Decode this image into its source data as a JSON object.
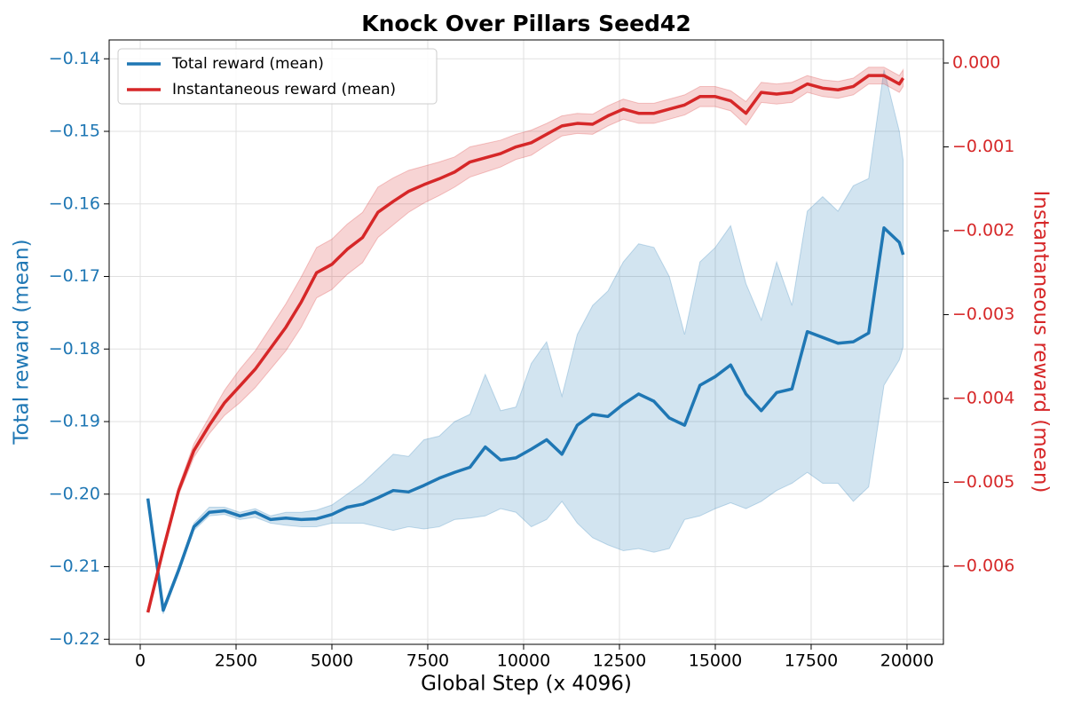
{
  "chart_data": {
    "type": "line",
    "title": "Knock Over Pillars Seed42",
    "x_label": "Global Step (x 4096)",
    "y_label": "Total reward (mean)",
    "y2_label": "Instantaneous reward (mean)",
    "grid": true,
    "legend": "upper left",
    "xlim": [
      -810,
      20950
    ],
    "xticks": [
      0,
      2500,
      5000,
      7500,
      10000,
      12500,
      15000,
      17500,
      20000
    ],
    "ylim": [
      -0.2207,
      -0.1374
    ],
    "yticks": [
      {
        "value": -0.22,
        "label": "−0.22"
      },
      {
        "value": -0.21,
        "label": "−0.21"
      },
      {
        "value": -0.2,
        "label": "−0.20"
      },
      {
        "value": -0.19,
        "label": "−0.19"
      },
      {
        "value": -0.18,
        "label": "−0.18"
      },
      {
        "value": -0.17,
        "label": "−0.17"
      },
      {
        "value": -0.16,
        "label": "−0.16"
      },
      {
        "value": -0.15,
        "label": "−0.15"
      },
      {
        "value": -0.14,
        "label": "−0.14"
      }
    ],
    "y2lim": [
      -0.00693,
      0.000275
    ],
    "y2ticks": [
      {
        "value": -0.006,
        "label": "−0.006"
      },
      {
        "value": -0.005,
        "label": "−0.005"
      },
      {
        "value": -0.004,
        "label": "−0.004"
      },
      {
        "value": -0.003,
        "label": "−0.003"
      },
      {
        "value": -0.002,
        "label": "−0.002"
      },
      {
        "value": -0.001,
        "label": "−0.001"
      },
      {
        "value": 0,
        "label": "0.000"
      }
    ],
    "x": [
      200,
      600,
      1000,
      1400,
      1800,
      2200,
      2600,
      3000,
      3400,
      3800,
      4200,
      4600,
      5000,
      5400,
      5800,
      6200,
      6600,
      7000,
      7400,
      7800,
      8200,
      8600,
      9000,
      9400,
      9800,
      10200,
      10600,
      11000,
      11400,
      11800,
      12200,
      12600,
      13000,
      13400,
      13800,
      14200,
      14600,
      15000,
      15400,
      15800,
      16200,
      16600,
      17000,
      17400,
      17800,
      18200,
      18600,
      19000,
      19400,
      19800,
      19900
    ],
    "series": [
      {
        "name": "Total reward (mean)",
        "color": "#1f77b4",
        "axis": "y",
        "values": [
          -0.2006,
          -0.216,
          -0.2105,
          -0.2045,
          -0.2025,
          -0.2023,
          -0.203,
          -0.2025,
          -0.2035,
          -0.2033,
          -0.2035,
          -0.2034,
          -0.2028,
          -0.2018,
          -0.2014,
          -0.2005,
          -0.1995,
          -0.1997,
          -0.1988,
          -0.1978,
          -0.197,
          -0.1963,
          -0.1935,
          -0.1953,
          -0.195,
          -0.1938,
          -0.1925,
          -0.1945,
          -0.1905,
          -0.189,
          -0.1893,
          -0.1876,
          -0.1862,
          -0.1872,
          -0.1895,
          -0.1905,
          -0.185,
          -0.1838,
          -0.1822,
          -0.1862,
          -0.1885,
          -0.186,
          -0.1855,
          -0.1776,
          -0.1784,
          -0.1792,
          -0.179,
          -0.1778,
          -0.1633,
          -0.1653,
          -0.167
        ],
        "lower": [
          -0.2006,
          -0.2165,
          -0.211,
          -0.205,
          -0.203,
          -0.2028,
          -0.2035,
          -0.2032,
          -0.204,
          -0.2043,
          -0.2045,
          -0.2045,
          -0.204,
          -0.204,
          -0.204,
          -0.2045,
          -0.205,
          -0.2045,
          -0.2048,
          -0.2045,
          -0.2035,
          -0.2033,
          -0.203,
          -0.202,
          -0.2025,
          -0.2045,
          -0.2035,
          -0.201,
          -0.204,
          -0.206,
          -0.207,
          -0.2078,
          -0.2075,
          -0.208,
          -0.2075,
          -0.2035,
          -0.203,
          -0.202,
          -0.2012,
          -0.202,
          -0.201,
          -0.1995,
          -0.1985,
          -0.197,
          -0.1985,
          -0.1985,
          -0.201,
          -0.199,
          -0.185,
          -0.1815,
          -0.1797
        ],
        "upper": [
          -0.2006,
          -0.2155,
          -0.21,
          -0.204,
          -0.2018,
          -0.2018,
          -0.2025,
          -0.202,
          -0.203,
          -0.2025,
          -0.2025,
          -0.2022,
          -0.2015,
          -0.2,
          -0.1985,
          -0.1965,
          -0.1945,
          -0.1948,
          -0.1925,
          -0.192,
          -0.19,
          -0.189,
          -0.1835,
          -0.1885,
          -0.188,
          -0.182,
          -0.179,
          -0.1865,
          -0.178,
          -0.174,
          -0.172,
          -0.168,
          -0.1655,
          -0.166,
          -0.17,
          -0.178,
          -0.168,
          -0.166,
          -0.163,
          -0.171,
          -0.176,
          -0.168,
          -0.174,
          -0.161,
          -0.159,
          -0.161,
          -0.1575,
          -0.1565,
          -0.1415,
          -0.15,
          -0.154
        ]
      },
      {
        "name": "Instantaneous reward (mean)",
        "color": "#d62728",
        "axis": "y2",
        "values": [
          -0.00655,
          -0.0058,
          -0.0051,
          -0.00462,
          -0.00432,
          -0.00405,
          -0.00385,
          -0.00365,
          -0.0034,
          -0.00315,
          -0.00285,
          -0.0025,
          -0.0024,
          -0.00222,
          -0.00208,
          -0.00178,
          -0.00165,
          -0.00153,
          -0.00145,
          -0.00138,
          -0.0013,
          -0.00118,
          -0.00113,
          -0.00108,
          -0.001,
          -0.00095,
          -0.00085,
          -0.00075,
          -0.00072,
          -0.00073,
          -0.00063,
          -0.00055,
          -0.0006,
          -0.0006,
          -0.00055,
          -0.0005,
          -0.0004,
          -0.0004,
          -0.00045,
          -0.0006,
          -0.00035,
          -0.00037,
          -0.00035,
          -0.00025,
          -0.0003,
          -0.00032,
          -0.00028,
          -0.00015,
          -0.00015,
          -0.00025,
          -0.00018
        ],
        "lower": [
          -0.00655,
          -0.00585,
          -0.00515,
          -0.0047,
          -0.00442,
          -0.0042,
          -0.00405,
          -0.00387,
          -0.00365,
          -0.00343,
          -0.00315,
          -0.0028,
          -0.0027,
          -0.00252,
          -0.00238,
          -0.00208,
          -0.00193,
          -0.00178,
          -0.00167,
          -0.00158,
          -0.00148,
          -0.00136,
          -0.0013,
          -0.00124,
          -0.00115,
          -0.0011,
          -0.00098,
          -0.00087,
          -0.00084,
          -0.00085,
          -0.00075,
          -0.00067,
          -0.00072,
          -0.00072,
          -0.00067,
          -0.00062,
          -0.00052,
          -0.00052,
          -0.00057,
          -0.00074,
          -0.00047,
          -0.00049,
          -0.00047,
          -0.00035,
          -0.0004,
          -0.00042,
          -0.00038,
          -0.00025,
          -0.00025,
          -0.00035,
          -0.00028
        ],
        "upper": [
          -0.00655,
          -0.00575,
          -0.00505,
          -0.00454,
          -0.00422,
          -0.0039,
          -0.00365,
          -0.00343,
          -0.00315,
          -0.00287,
          -0.00255,
          -0.0022,
          -0.0021,
          -0.00192,
          -0.00178,
          -0.00148,
          -0.00137,
          -0.00128,
          -0.00123,
          -0.00118,
          -0.00112,
          -0.001,
          -0.00096,
          -0.00092,
          -0.00085,
          -0.0008,
          -0.00072,
          -0.00063,
          -0.0006,
          -0.00061,
          -0.00051,
          -0.00043,
          -0.00048,
          -0.00048,
          -0.00043,
          -0.00038,
          -0.00028,
          -0.00028,
          -0.00033,
          -0.00046,
          -0.00023,
          -0.00025,
          -0.00023,
          -0.00015,
          -0.0002,
          -0.00022,
          -0.00018,
          -5e-05,
          -5e-05,
          -0.00015,
          -8e-05
        ]
      }
    ]
  }
}
